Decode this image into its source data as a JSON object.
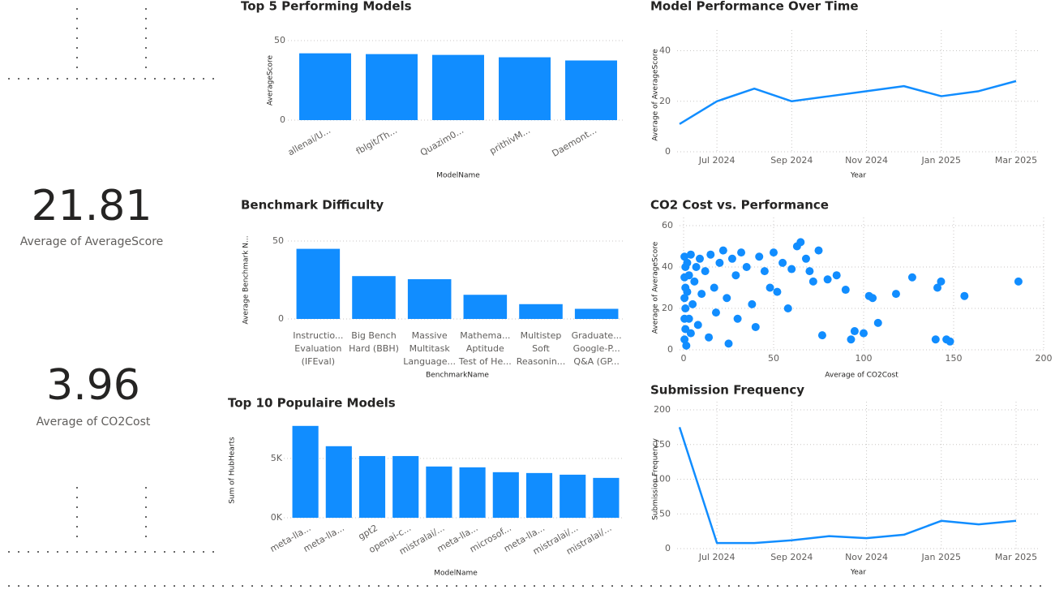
{
  "cards": [
    {
      "value": 21.81,
      "label": "Average of AverageScore"
    },
    {
      "value": 3.96,
      "label": "Average of CO2Cost"
    }
  ],
  "chart_data": [
    {
      "type": "bar",
      "title": "Top 5 Performing Models",
      "x_label": "ModelName",
      "y_label": "AverageScore",
      "categories": [
        "allenai/U...",
        "fblgit/Th...",
        "Quazim0...",
        "prithivM...",
        "Daemont..."
      ],
      "values": [
        42,
        41.5,
        41,
        39.5,
        37.5
      ],
      "color": "#118dff",
      "ylim": [
        0,
        50
      ],
      "yticks": [
        0,
        50
      ],
      "grid": true,
      "label_style": "rotated"
    },
    {
      "type": "bar",
      "title": "Benchmark Difficulty",
      "x_label": "BenchmarkName",
      "y_label": "Average Benchmark N...",
      "categories": [
        [
          "Instructio...",
          "Evaluation",
          "(IFEval)"
        ],
        [
          "Big Bench",
          "Hard (BBH)"
        ],
        [
          "Massive",
          "Multitask",
          "Language..."
        ],
        [
          "Mathema...",
          "Aptitude",
          "Test of He..."
        ],
        [
          "Multistep",
          "Soft",
          "Reasonin..."
        ],
        [
          "Graduate...",
          "Google-P...",
          "Q&A (GP..."
        ]
      ],
      "values": [
        45,
        27.5,
        25.5,
        15.5,
        9.5,
        6.5
      ],
      "color": "#118dff",
      "ylim": [
        0,
        50
      ],
      "yticks": [
        0,
        50
      ],
      "grid": true,
      "label_style": "multiline"
    },
    {
      "type": "bar",
      "title": "Top 10 Populaire Models",
      "x_label": "ModelName",
      "y_label": "Sum of HubHearts",
      "categories": [
        "meta-lla...",
        "meta-lla...",
        "gpt2",
        "openai-c...",
        "mistralai/...",
        "meta-lla...",
        "microsof...",
        "meta-lla...",
        "mistralai/...",
        "mistralai/..."
      ],
      "values": [
        7740,
        6030,
        5200,
        5200,
        4320,
        4250,
        3840,
        3770,
        3630,
        3360
      ],
      "color": "#118dff",
      "ylim": [
        0,
        8000
      ],
      "yticks": [
        {
          "value": 0,
          "label": "0K"
        },
        {
          "value": 5000,
          "label": "5K"
        }
      ],
      "grid": true,
      "label_style": "rotated"
    },
    {
      "type": "line",
      "title": "Model Performance Over Time",
      "x_label": "Year",
      "y_label": "Average of AverageScore",
      "x": [
        "2024-06",
        "2024-07",
        "2024-08",
        "2024-09",
        "2024-10",
        "2024-11",
        "2024-12",
        "2025-01",
        "2025-02",
        "2025-03"
      ],
      "series": [
        {
          "name": "Average of AverageScore",
          "color": "#118dff",
          "values": [
            11,
            20,
            25,
            20,
            22,
            24,
            26,
            22,
            24,
            28
          ]
        }
      ],
      "xlim": [
        "2024-06",
        "2025-03"
      ],
      "ylim": [
        0,
        45
      ],
      "yticks": [
        0,
        20,
        40
      ],
      "xticks": [
        {
          "value": "2024-07",
          "label": "Jul 2024"
        },
        {
          "value": "2024-09",
          "label": "Sep 2024"
        },
        {
          "value": "2024-11",
          "label": "Nov 2024"
        },
        {
          "value": "2025-01",
          "label": "Jan 2025"
        },
        {
          "value": "2025-03",
          "label": "Mar 2025"
        }
      ],
      "grid": true
    },
    {
      "type": "scatter",
      "title": "CO2 Cost vs. Performance",
      "x_label": "Average of CO2Cost",
      "y_label": "Average of AverageScore",
      "series": [
        {
          "name": "Models",
          "color": "#118dff",
          "x": [
            0.5,
            0.5,
            0.5,
            0.5,
            0.5,
            1,
            1,
            1,
            1,
            1.5,
            2,
            2,
            3,
            3,
            4,
            4,
            5,
            6,
            7,
            8,
            9,
            10,
            12,
            14,
            15,
            17,
            18,
            20,
            22,
            24,
            25,
            27,
            29,
            30,
            32,
            35,
            38,
            40,
            42,
            45,
            48,
            50,
            52,
            55,
            58,
            60,
            63,
            65,
            68,
            70,
            72,
            75,
            77,
            80,
            85,
            90,
            93,
            95,
            100,
            103,
            105,
            108,
            118,
            127,
            140,
            141,
            143,
            146,
            148,
            156,
            186
          ],
          "values": [
            5,
            15,
            25,
            35,
            45,
            10,
            20,
            30,
            40,
            2,
            28,
            42,
            15,
            36,
            8,
            46,
            22,
            33,
            40,
            12,
            44,
            27,
            38,
            6,
            46,
            30,
            18,
            42,
            48,
            25,
            3,
            44,
            36,
            15,
            47,
            40,
            22,
            11,
            45,
            38,
            30,
            47,
            28,
            42,
            20,
            39,
            50,
            52,
            44,
            38,
            33,
            48,
            7,
            34,
            36,
            29,
            5,
            9,
            8,
            26,
            25,
            13,
            27,
            35,
            5,
            30,
            33,
            5,
            4,
            26,
            33
          ]
        }
      ],
      "xlim": [
        0,
        200
      ],
      "ylim": [
        0,
        60
      ],
      "xticks": [
        0,
        50,
        100,
        150,
        200
      ],
      "yticks": [
        0,
        20,
        40,
        60
      ],
      "grid": true
    },
    {
      "type": "line",
      "title": "Submission Frequency",
      "x_label": "Year",
      "y_label": "Submission Frequency",
      "x": [
        "2024-06",
        "2024-07",
        "2024-08",
        "2024-09",
        "2024-10",
        "2024-11",
        "2024-12",
        "2025-01",
        "2025-02",
        "2025-03"
      ],
      "series": [
        {
          "name": "Submission Frequency",
          "color": "#118dff",
          "values": [
            175,
            8,
            8,
            12,
            18,
            15,
            20,
            40,
            35,
            40
          ]
        }
      ],
      "xlim": [
        "2024-06",
        "2025-03"
      ],
      "ylim": [
        0,
        200
      ],
      "yticks": [
        0,
        50,
        100,
        150,
        200
      ],
      "xticks": [
        {
          "value": "2024-07",
          "label": "Jul 2024"
        },
        {
          "value": "2024-09",
          "label": "Sep 2024"
        },
        {
          "value": "2024-11",
          "label": "Nov 2024"
        },
        {
          "value": "2025-01",
          "label": "Jan 2025"
        },
        {
          "value": "2025-03",
          "label": "Mar 2025"
        }
      ],
      "grid": true
    }
  ]
}
